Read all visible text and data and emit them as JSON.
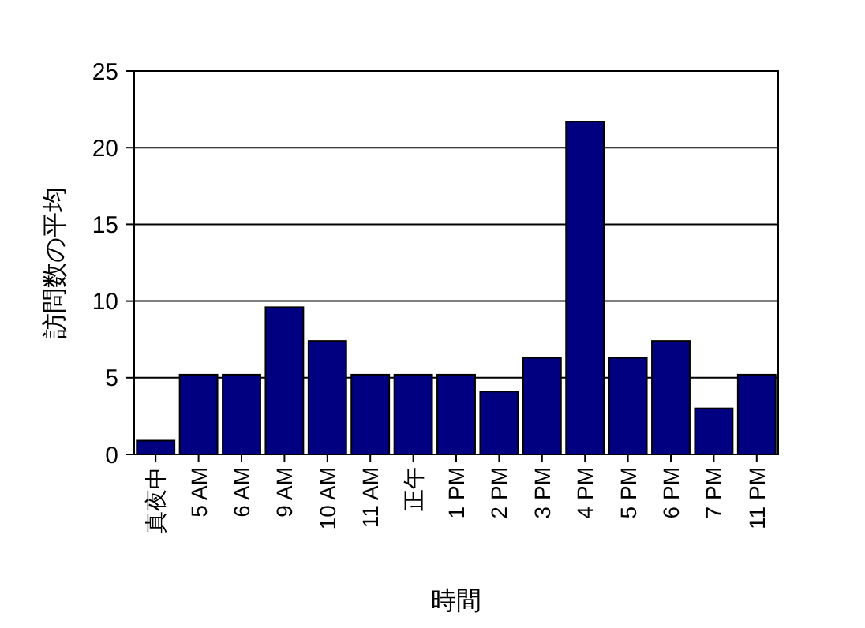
{
  "chart_data": {
    "type": "bar",
    "xlabel": "時間",
    "ylabel": "訪問数の平均",
    "categories": [
      "真夜中",
      "5 AM",
      "6 AM",
      "9 AM",
      "10 AM",
      "11 AM",
      "正午",
      "1 PM",
      "2 PM",
      "3 PM",
      "4 PM",
      "5 PM",
      "6 PM",
      "7 PM",
      "11 PM"
    ],
    "values": [
      0.9,
      5.2,
      5.2,
      9.6,
      7.4,
      5.2,
      5.2,
      5.2,
      4.1,
      6.3,
      21.7,
      6.3,
      7.4,
      3.0,
      5.2
    ],
    "color": "#000080",
    "ylim": [
      0,
      25
    ],
    "yticks": [
      0,
      5,
      10,
      15,
      20,
      25
    ],
    "grid": "y"
  }
}
